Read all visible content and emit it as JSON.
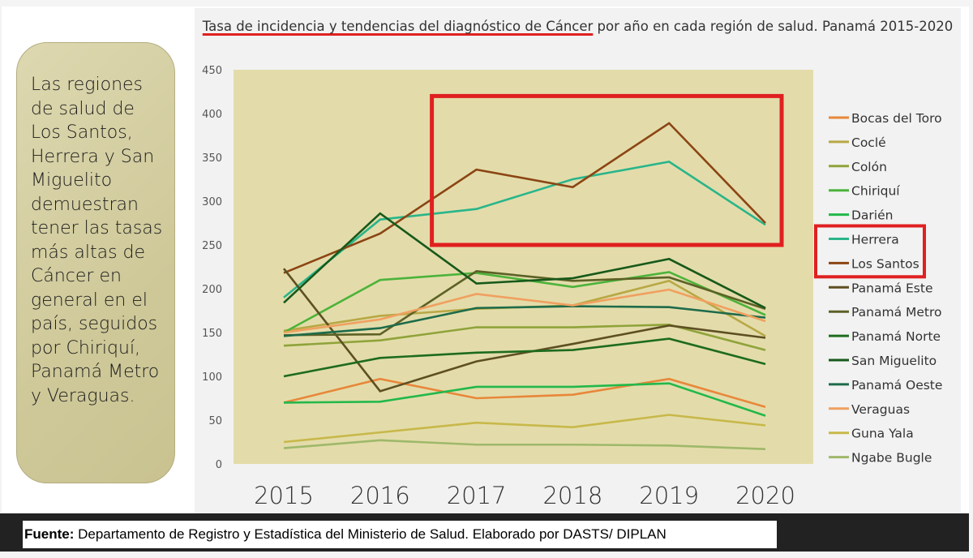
{
  "note": {
    "text": "Las regiones de salud de Los Santos, Herrera y San Miguelito demuestran tener las tasas más altas de Cáncer en general en el país, seguidos por Chiriquí, Panamá Metro y Veraguas."
  },
  "source": {
    "label": "Fuente:",
    "text": " Departamento de Registro y Estadística del Ministerio de Salud. Elaborado por DASTS/ DIPLAN"
  },
  "chart_data": {
    "type": "line",
    "title_underlined": "Tasa de incidencia y tendencias del diagnóstico de Cáncer",
    "title_rest": " por año en cada región de salud. Panamá 2015-2020",
    "x": [
      "2015",
      "2016",
      "2017",
      "2018",
      "2019",
      "2020"
    ],
    "ylim": [
      0,
      450
    ],
    "yticks": [
      0,
      50,
      100,
      150,
      200,
      250,
      300,
      350,
      400,
      450
    ],
    "grid": false,
    "legend_position": "right",
    "highlight": {
      "legend_entries": [
        "Herrera",
        "Los Santos"
      ],
      "color": "#e02020",
      "x_range": [
        "2017",
        "2020"
      ],
      "y_range": [
        250,
        420
      ]
    },
    "plot_background": "#e3dcaa",
    "series": [
      {
        "name": "Bocas del Toro",
        "color": "#e8873a",
        "values": [
          70,
          97,
          75,
          79,
          97,
          65
        ]
      },
      {
        "name": "Coclé",
        "color": "#b8a845",
        "values": [
          152,
          169,
          177,
          181,
          209,
          146
        ]
      },
      {
        "name": "Colón",
        "color": "#8fa33a",
        "values": [
          135,
          141,
          156,
          156,
          159,
          130
        ]
      },
      {
        "name": "Chiriquí",
        "color": "#4cb33a",
        "values": [
          150,
          210,
          218,
          202,
          219,
          170
        ]
      },
      {
        "name": "Darién",
        "color": "#22b84a",
        "values": [
          70,
          71,
          88,
          88,
          92,
          55
        ]
      },
      {
        "name": "Herrera",
        "color": "#2ab58a",
        "values": [
          190,
          279,
          291,
          325,
          345,
          273
        ]
      },
      {
        "name": "Los Santos",
        "color": "#8b4513",
        "values": [
          218,
          263,
          336,
          316,
          389,
          275
        ]
      },
      {
        "name": "Panamá Este",
        "color": "#5e4f22",
        "values": [
          223,
          83,
          117,
          137,
          158,
          144
        ]
      },
      {
        "name": "Panamá Metro",
        "color": "#5d6126",
        "values": [
          147,
          148,
          220,
          209,
          213,
          177
        ]
      },
      {
        "name": "Panamá Norte",
        "color": "#1e6b1e",
        "values": [
          100,
          121,
          127,
          130,
          143,
          114
        ]
      },
      {
        "name": "San Miguelito",
        "color": "#17591a",
        "values": [
          184,
          286,
          206,
          212,
          234,
          178
        ]
      },
      {
        "name": "Panamá Oeste",
        "color": "#1e6b4a",
        "values": [
          146,
          155,
          178,
          180,
          179,
          167
        ]
      },
      {
        "name": "Veraguas",
        "color": "#f0a060",
        "values": [
          150,
          165,
          194,
          181,
          199,
          163
        ]
      },
      {
        "name": "Guna Yala",
        "color": "#c8b84a",
        "values": [
          25,
          36,
          47,
          42,
          56,
          44
        ]
      },
      {
        "name": "Ngabe Bugle",
        "color": "#9fb86a",
        "values": [
          18,
          27,
          22,
          22,
          21,
          17
        ]
      }
    ]
  }
}
